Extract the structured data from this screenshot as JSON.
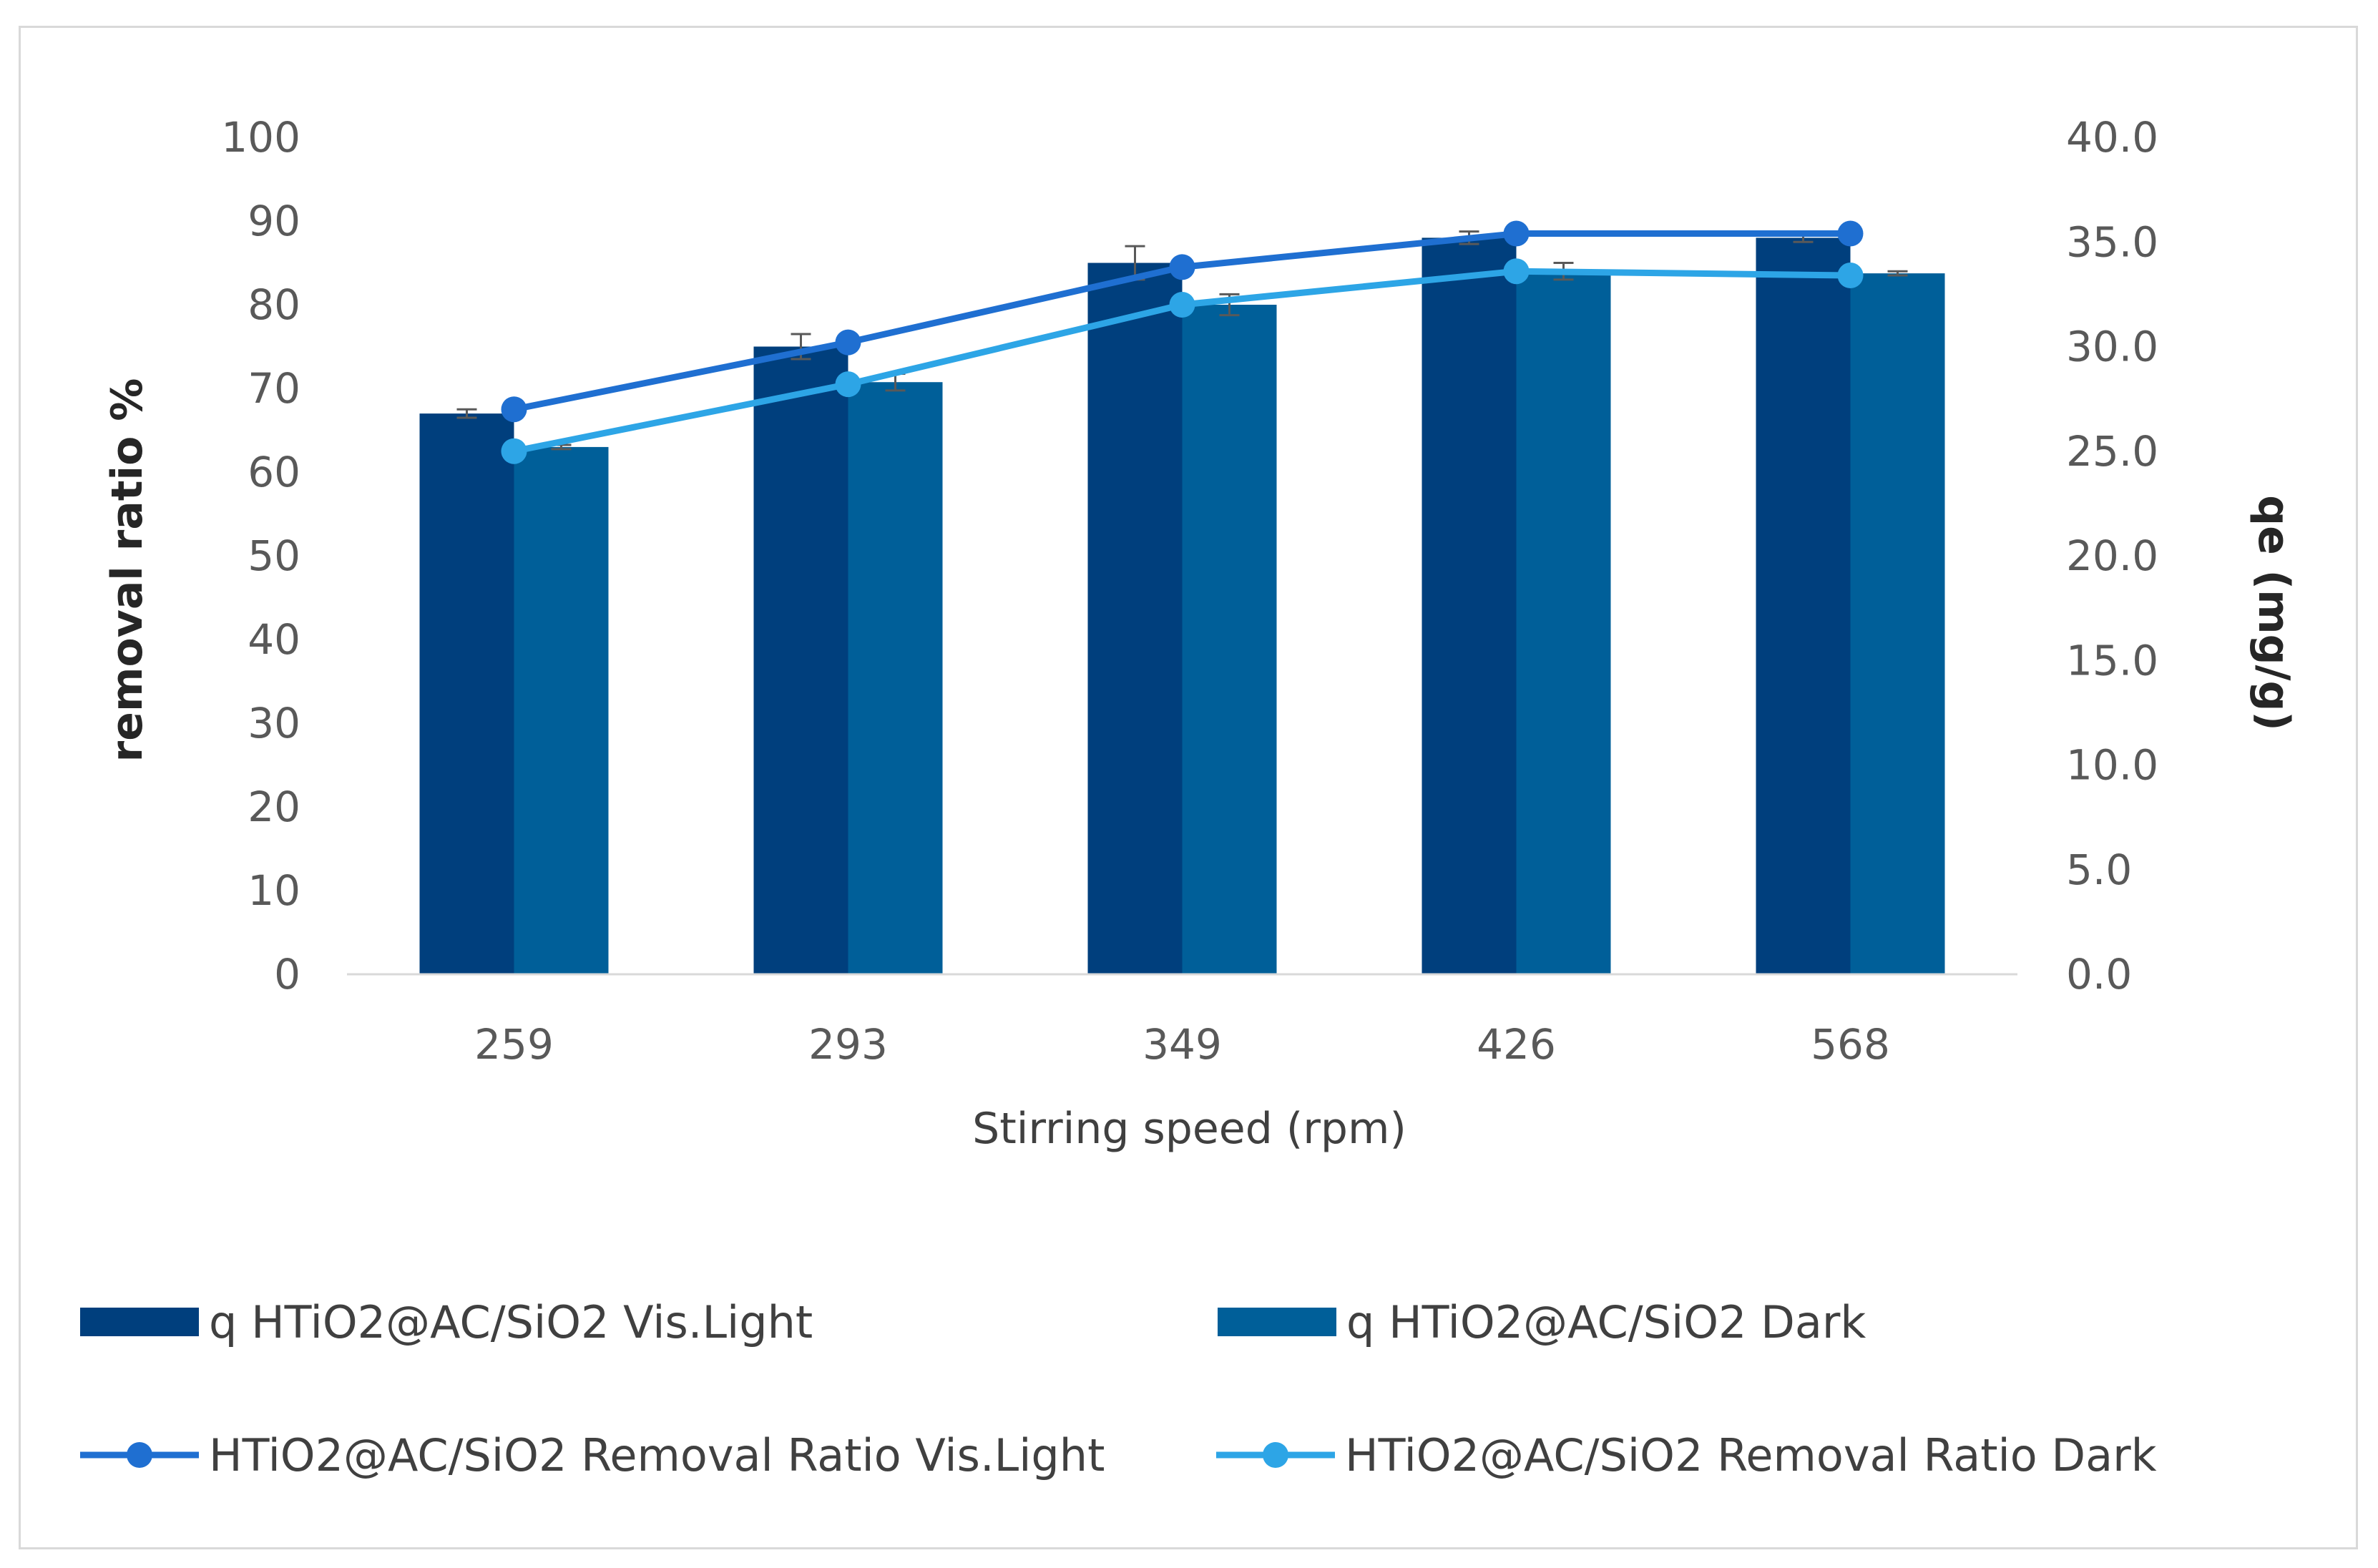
{
  "chart_data": {
    "type": "bar",
    "categories": [
      "259",
      "293",
      "349",
      "426",
      "568"
    ],
    "xlabel": "Stirring speed (rpm)",
    "ylabel_left": "removal ratio %",
    "ylabel_right": "qe (mg/g)",
    "ylim_left": [
      0,
      100
    ],
    "ylim_right": [
      0,
      40
    ],
    "yticks_left": [
      "0",
      "10",
      "20",
      "30",
      "40",
      "50",
      "60",
      "70",
      "80",
      "90",
      "100"
    ],
    "yticks_right": [
      "0.0",
      "5.0",
      "10.0",
      "15.0",
      "20.0",
      "25.0",
      "30.0",
      "35.0",
      "40.0"
    ],
    "series": [
      {
        "name": "q HTiO2@AC/SiO2 Vis.Light",
        "kind": "bar",
        "axis": "right",
        "color": "#003f7d",
        "values": [
          26.8,
          30.0,
          34.0,
          35.2,
          35.2
        ],
        "errors": [
          0.2,
          0.6,
          0.8,
          0.3,
          0.2
        ]
      },
      {
        "name": "q HTiO2@AC/SiO2 Dark",
        "kind": "bar",
        "axis": "right",
        "color": "#005f99",
        "values": [
          25.2,
          28.3,
          32.0,
          33.6,
          33.5
        ],
        "errors": [
          0.1,
          0.4,
          0.5,
          0.4,
          0.1
        ]
      },
      {
        "name": "HTiO2@AC/SiO2 Removal Ratio Vis.Light",
        "kind": "line",
        "axis": "left",
        "color": "#1f6fd1",
        "values": [
          67.5,
          75.5,
          84.5,
          88.5,
          88.5
        ]
      },
      {
        "name": "HTiO2@AC/SiO2 Removal Ratio Dark",
        "kind": "line",
        "axis": "left",
        "color": "#2da5e6",
        "values": [
          62.5,
          70.5,
          80.0,
          84.0,
          83.5
        ]
      }
    ]
  }
}
